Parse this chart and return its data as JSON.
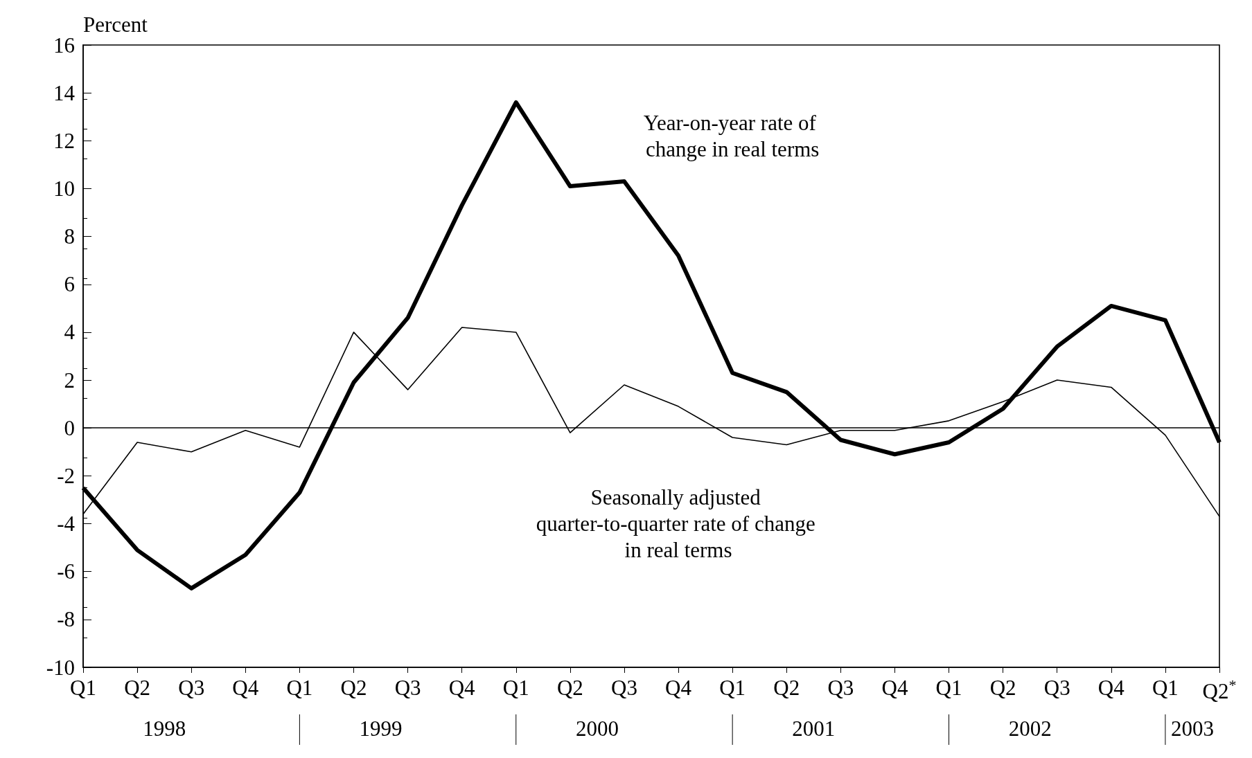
{
  "chart_data": {
    "type": "line",
    "ylabel": "Percent",
    "categories": [
      "Q1",
      "Q2",
      "Q3",
      "Q4",
      "Q1",
      "Q2",
      "Q3",
      "Q4",
      "Q1",
      "Q2",
      "Q3",
      "Q4",
      "Q1",
      "Q2",
      "Q3",
      "Q4",
      "Q1",
      "Q2",
      "Q3",
      "Q4",
      "Q1",
      "Q2$^{*}$"
    ],
    "series": [
      {
        "name": "Year-on-year rate of change in real terms",
        "color": "#000000",
        "values": [
          -2.5,
          -5.1,
          -6.7,
          -5.3,
          -2.7,
          1.9,
          4.6,
          9.3,
          13.6,
          10.1,
          10.3,
          7.2,
          2.3,
          1.5,
          -0.5,
          -1.1,
          -0.6,
          0.8,
          3.4,
          5.1,
          4.5,
          -0.6
        ]
      },
      {
        "name": "Seasonally adjusted quarter-to-quarter rate of change in real terms",
        "color": "#000000",
        "values": [
          -3.6,
          -0.6,
          -1.0,
          -0.1,
          -0.8,
          4.0,
          1.6,
          4.2,
          4.0,
          -0.2,
          1.8,
          0.9,
          -0.4,
          -0.7,
          -0.1,
          -0.1,
          0.3,
          1.1,
          2.0,
          1.7,
          -0.3,
          -3.7
        ]
      }
    ],
    "annotations": [
      "1998",
      "1999",
      "2000",
      "2001",
      "2002",
      "2003"
    ],
    "ylim": [
      -10,
      16
    ],
    "yticks": [
      -10,
      -8,
      -6,
      -4,
      -2,
      0,
      2,
      4,
      6,
      8,
      10,
      12,
      14,
      16
    ],
    "ref_lines": [
      {
        "axis": "y",
        "value": 0
      }
    ],
    "grid": false,
    "legend": false,
    "marker": "none",
    "line_style": "solid"
  }
}
